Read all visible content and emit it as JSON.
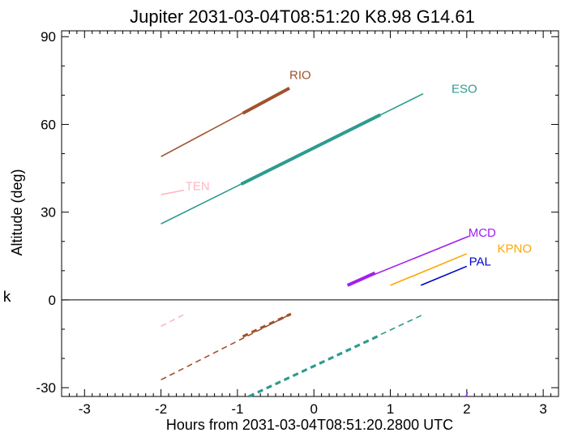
{
  "chart_data": {
    "type": "line",
    "title": "Jupiter 2031-03-04T08:51:20  K8.98  G14.61",
    "xlabel": "Hours from 2031-03-04T08:51:20.2800 UTC",
    "ylabel": "Altitude (deg)",
    "side_label": "k",
    "xlim": [
      -3.3,
      3.2
    ],
    "ylim": [
      -33,
      92
    ],
    "x_ticks": [
      -3,
      -2,
      -1,
      0,
      1,
      2,
      3
    ],
    "y_ticks": [
      -30,
      0,
      30,
      60,
      90
    ],
    "x_tick_labels": [
      "-3",
      "-2",
      "-1",
      "0",
      "1",
      "2",
      "3"
    ],
    "y_tick_labels": [
      "-30",
      "0",
      "30",
      "60",
      "90"
    ],
    "reference_line_y": 0,
    "grid": false,
    "series": [
      {
        "name": "RIO",
        "color": "#a0522d",
        "above": {
          "x": [
            -2.0,
            -0.32
          ],
          "y": [
            49,
            72.4
          ]
        },
        "above_thick": {
          "x": [
            -0.93,
            -0.32
          ],
          "y": [
            63.8,
            72.4
          ]
        },
        "below": {
          "x": [
            -2.0,
            -0.3
          ],
          "y": [
            -27.3,
            -4.8
          ]
        },
        "below_thick": {
          "x": [
            -0.93,
            -0.3
          ],
          "y": [
            -12.5,
            -4.8
          ]
        }
      },
      {
        "name": "ESO",
        "color": "#2e9b8f",
        "above": {
          "x": [
            -2.0,
            1.43
          ],
          "y": [
            26,
            70.5
          ]
        },
        "above_thick": {
          "x": [
            -0.95,
            0.87
          ],
          "y": [
            39.6,
            63.3
          ]
        },
        "below": {
          "x": [
            -0.85,
            1.43
          ],
          "y": [
            -33,
            -5
          ]
        },
        "below_thick": {
          "x": [
            -0.85,
            0.87
          ],
          "y": [
            -33,
            -12
          ]
        }
      },
      {
        "name": "TEN",
        "color": "#ffb6c1",
        "above": {
          "x": [
            -2.0,
            -1.7
          ],
          "y": [
            36,
            37.5
          ]
        },
        "below": {
          "x": [
            -2.0,
            -1.7
          ],
          "y": [
            -9,
            -5
          ]
        }
      },
      {
        "name": "MCD",
        "color": "#a020f0",
        "above": {
          "x": [
            0.44,
            2.03
          ],
          "y": [
            5,
            21.8
          ]
        },
        "above_thick": {
          "x": [
            0.44,
            0.8
          ],
          "y": [
            5,
            9.2
          ]
        },
        "below": {
          "x": [
            1.99,
            2.01
          ],
          "y": [
            -33,
            -31.5
          ]
        }
      },
      {
        "name": "KPNO",
        "color": "#ffa500",
        "above": {
          "x": [
            1.0,
            2.0
          ],
          "y": [
            5,
            15.8
          ]
        }
      },
      {
        "name": "PAL",
        "color": "#0000cd",
        "above": {
          "x": [
            1.4,
            2.0
          ],
          "y": [
            5,
            11.5
          ]
        }
      }
    ]
  }
}
